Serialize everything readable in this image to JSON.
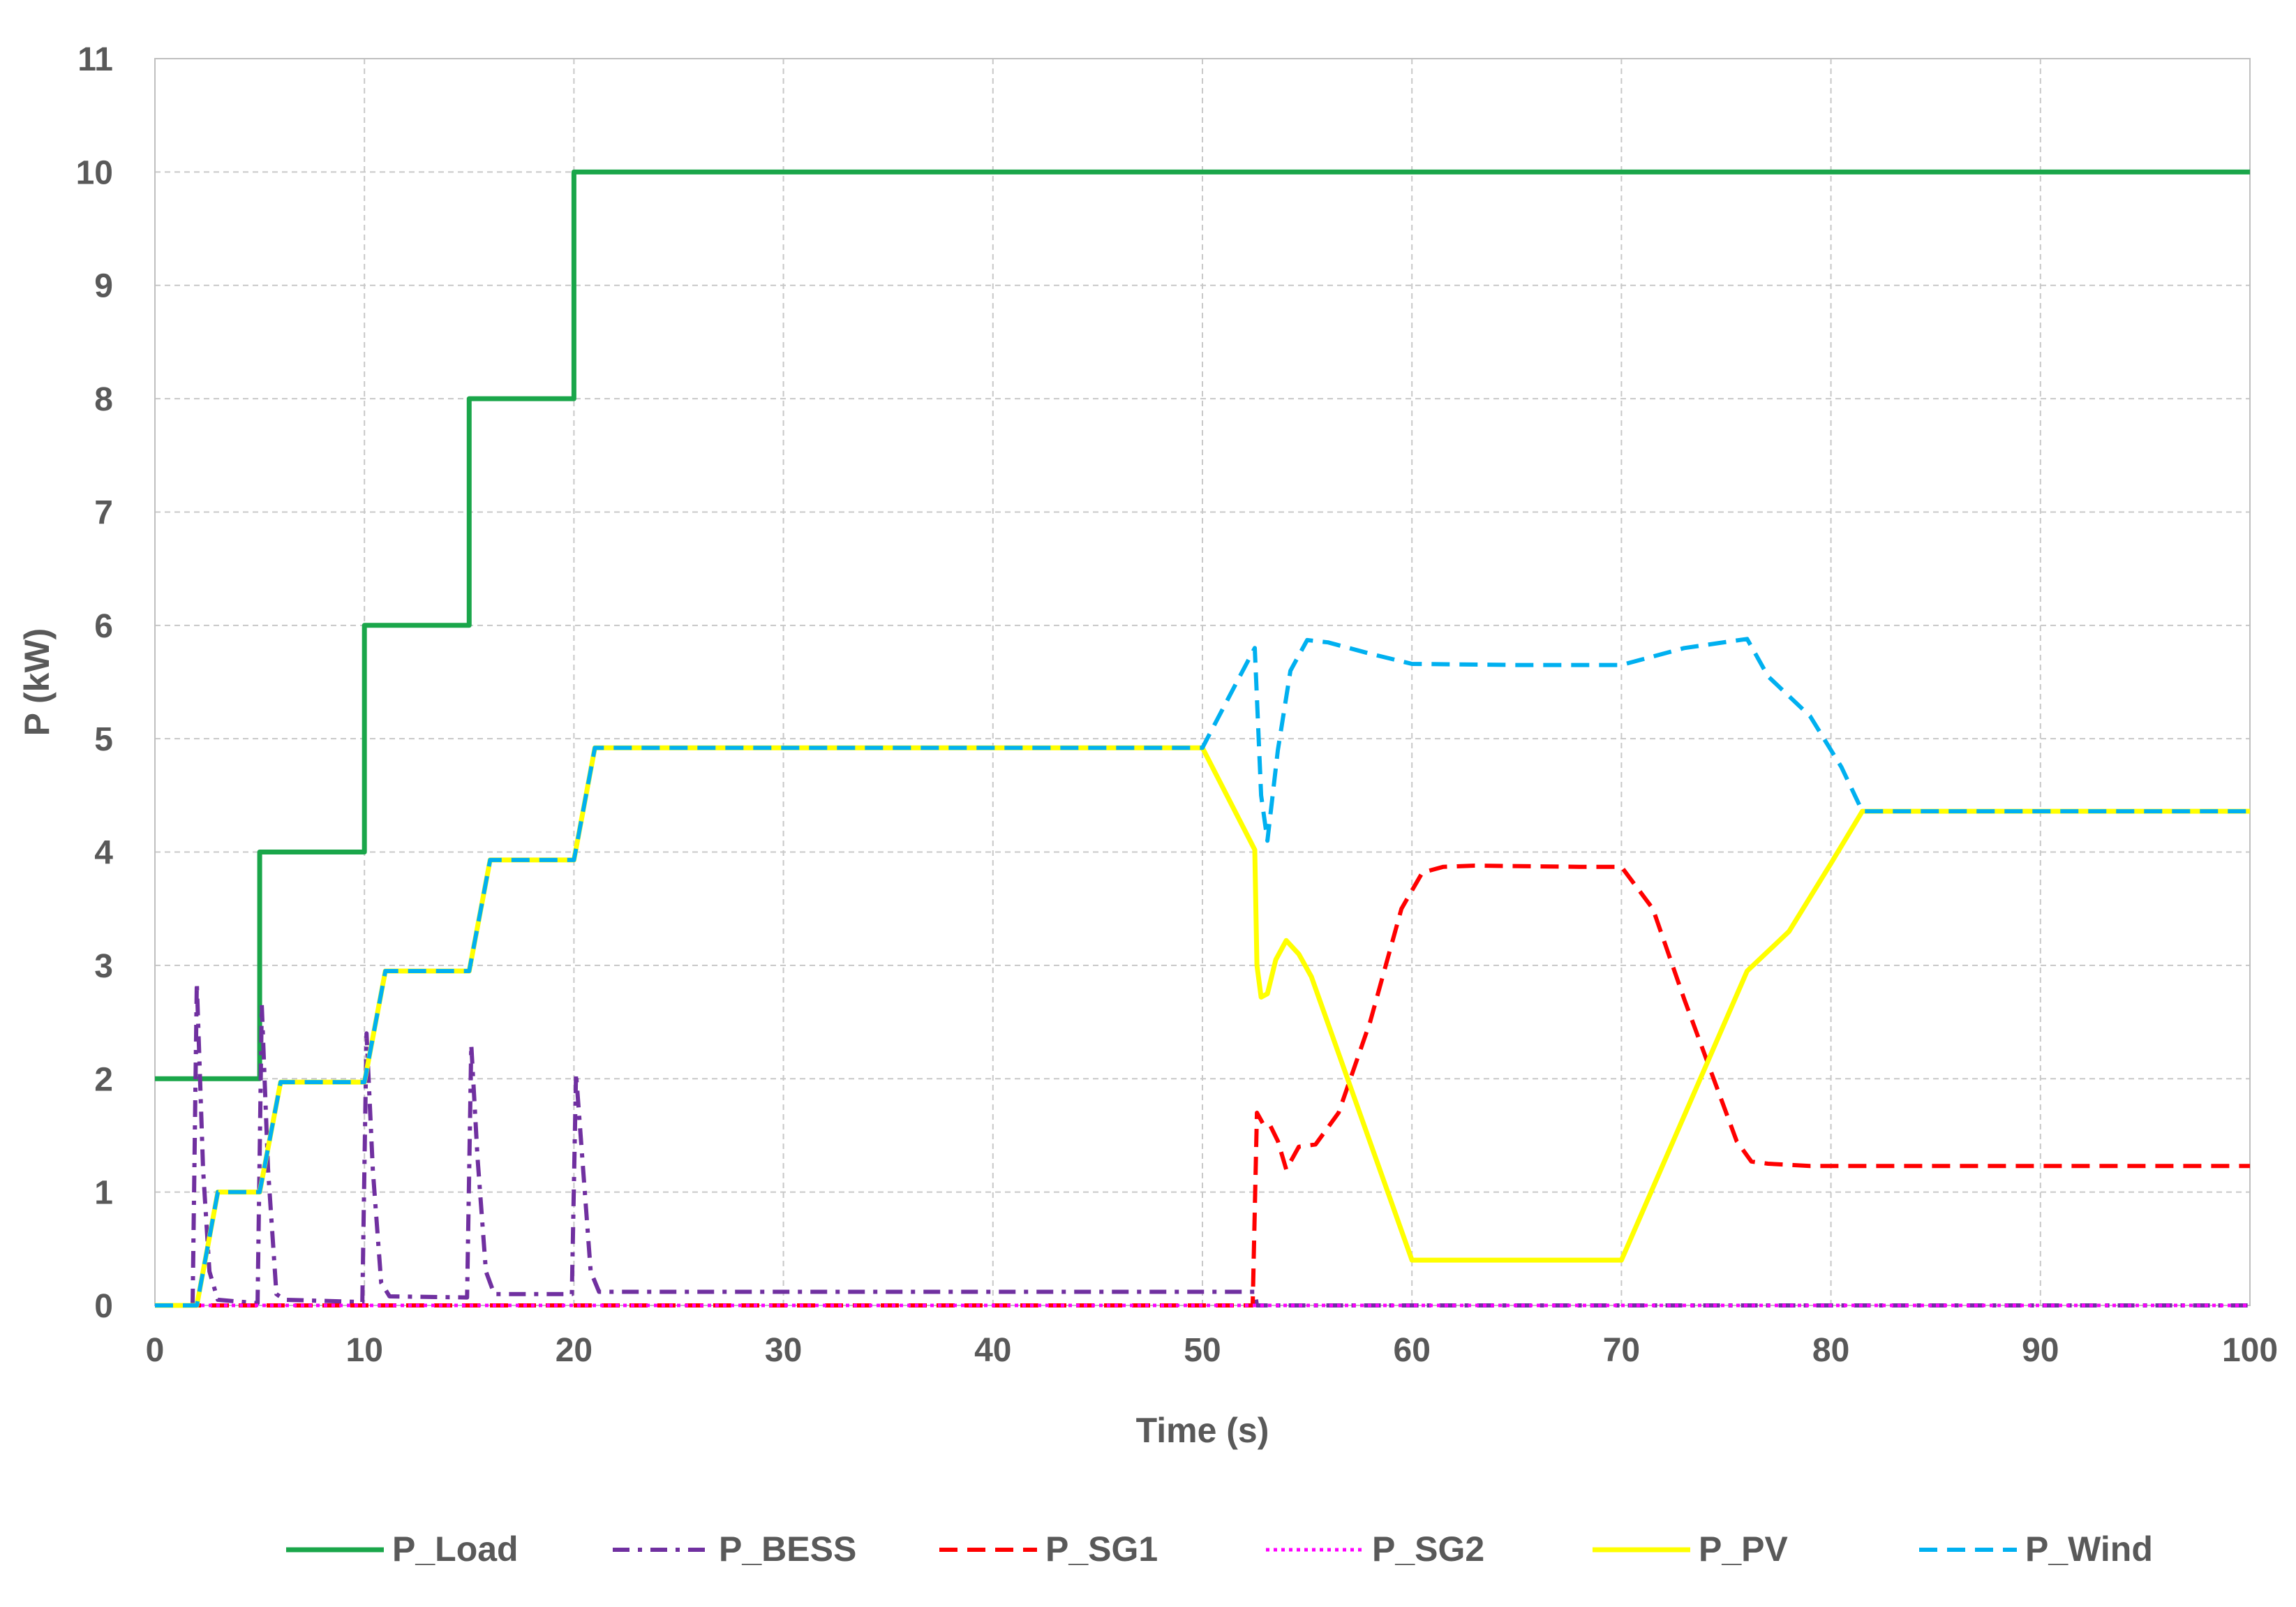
{
  "chart_data": {
    "type": "line",
    "title": "",
    "xlabel": "Time (s)",
    "ylabel": "P (kW)",
    "xlim": [
      0,
      100
    ],
    "ylim": [
      0,
      11
    ],
    "xticks": [
      0,
      10,
      20,
      30,
      40,
      50,
      60,
      70,
      80,
      90,
      100
    ],
    "yticks": [
      0,
      1,
      2,
      3,
      4,
      5,
      6,
      7,
      8,
      9,
      10,
      11
    ],
    "grid": true,
    "legend_position": "bottom",
    "series": [
      {
        "name": "P_Load",
        "color": "#1aa64a",
        "style": "solid",
        "points": [
          [
            0,
            2
          ],
          [
            5,
            2
          ],
          [
            5,
            4
          ],
          [
            10,
            4
          ],
          [
            10,
            6
          ],
          [
            15,
            6
          ],
          [
            15,
            8
          ],
          [
            20,
            8
          ],
          [
            20,
            10
          ],
          [
            100,
            10
          ]
        ]
      },
      {
        "name": "P_BESS",
        "color": "#7030a0",
        "style": "dashdot",
        "points": [
          [
            0,
            0
          ],
          [
            1.8,
            0
          ],
          [
            2,
            2.85
          ],
          [
            2.3,
            1.2
          ],
          [
            2.6,
            0.3
          ],
          [
            3,
            0.05
          ],
          [
            4.9,
            0.02
          ],
          [
            5.1,
            2.65
          ],
          [
            5.4,
            1.2
          ],
          [
            5.8,
            0.1
          ],
          [
            6.2,
            0.05
          ],
          [
            9.9,
            0.03
          ],
          [
            10.1,
            2.4
          ],
          [
            10.4,
            1.2
          ],
          [
            10.8,
            0.2
          ],
          [
            11.2,
            0.08
          ],
          [
            14.9,
            0.07
          ],
          [
            15.1,
            2.3
          ],
          [
            15.4,
            1.3
          ],
          [
            15.8,
            0.3
          ],
          [
            16.2,
            0.1
          ],
          [
            19.9,
            0.1
          ],
          [
            20.1,
            2.05
          ],
          [
            20.4,
            1.3
          ],
          [
            20.8,
            0.3
          ],
          [
            21.2,
            0.12
          ],
          [
            52.5,
            0.12
          ],
          [
            52.6,
            0
          ],
          [
            100,
            0
          ]
        ]
      },
      {
        "name": "P_SG1",
        "color": "#ff0000",
        "style": "dashed",
        "points": [
          [
            0,
            0
          ],
          [
            52.4,
            0
          ],
          [
            52.6,
            1.7
          ],
          [
            52.9,
            1.6
          ],
          [
            53.2,
            1.6
          ],
          [
            53.6,
            1.45
          ],
          [
            54,
            1.2
          ],
          [
            54.6,
            1.4
          ],
          [
            55.4,
            1.42
          ],
          [
            56.5,
            1.7
          ],
          [
            58,
            2.5
          ],
          [
            59.5,
            3.5
          ],
          [
            60.5,
            3.82
          ],
          [
            61.5,
            3.87
          ],
          [
            63,
            3.88
          ],
          [
            68,
            3.87
          ],
          [
            70,
            3.87
          ],
          [
            71.5,
            3.5
          ],
          [
            73,
            2.7
          ],
          [
            74.5,
            1.95
          ],
          [
            75.5,
            1.45
          ],
          [
            76.2,
            1.27
          ],
          [
            77,
            1.25
          ],
          [
            79,
            1.23
          ],
          [
            100,
            1.23
          ]
        ]
      },
      {
        "name": "P_SG2",
        "color": "#ff00ff",
        "style": "dotted",
        "points": [
          [
            0,
            0
          ],
          [
            100,
            0
          ]
        ]
      },
      {
        "name": "P_PV",
        "color": "#ffff00",
        "style": "solid",
        "points": [
          [
            0,
            0
          ],
          [
            2,
            0
          ],
          [
            3,
            1
          ],
          [
            5,
            1
          ],
          [
            6,
            1.97
          ],
          [
            10,
            1.97
          ],
          [
            11,
            2.95
          ],
          [
            15,
            2.95
          ],
          [
            16,
            3.93
          ],
          [
            20,
            3.93
          ],
          [
            21,
            4.92
          ],
          [
            50,
            4.92
          ],
          [
            52.5,
            4.02
          ],
          [
            52.6,
            3
          ],
          [
            52.8,
            2.72
          ],
          [
            53.1,
            2.75
          ],
          [
            53.5,
            3.05
          ],
          [
            54,
            3.22
          ],
          [
            54.6,
            3.1
          ],
          [
            55.2,
            2.9
          ],
          [
            60,
            0.4
          ],
          [
            70,
            0.4
          ],
          [
            76,
            2.95
          ],
          [
            78,
            3.3
          ],
          [
            80,
            3.9
          ],
          [
            81.5,
            4.36
          ],
          [
            100,
            4.36
          ]
        ]
      },
      {
        "name": "P_Wind",
        "color": "#00b0f0",
        "style": "dashed",
        "points": [
          [
            0,
            0
          ],
          [
            2,
            0
          ],
          [
            3,
            1
          ],
          [
            5,
            1
          ],
          [
            6,
            1.97
          ],
          [
            10,
            1.97
          ],
          [
            11,
            2.95
          ],
          [
            15,
            2.95
          ],
          [
            16,
            3.93
          ],
          [
            20,
            3.93
          ],
          [
            21,
            4.92
          ],
          [
            50,
            4.92
          ],
          [
            51.5,
            5.45
          ],
          [
            52.5,
            5.8
          ],
          [
            52.8,
            4.5
          ],
          [
            53.1,
            4.1
          ],
          [
            53.6,
            4.9
          ],
          [
            54.2,
            5.6
          ],
          [
            55,
            5.87
          ],
          [
            56,
            5.85
          ],
          [
            58,
            5.75
          ],
          [
            60,
            5.66
          ],
          [
            65,
            5.65
          ],
          [
            70,
            5.65
          ],
          [
            73,
            5.8
          ],
          [
            76,
            5.88
          ],
          [
            77,
            5.55
          ],
          [
            79,
            5.2
          ],
          [
            80.5,
            4.75
          ],
          [
            81.5,
            4.36
          ],
          [
            100,
            4.36
          ]
        ]
      }
    ]
  }
}
